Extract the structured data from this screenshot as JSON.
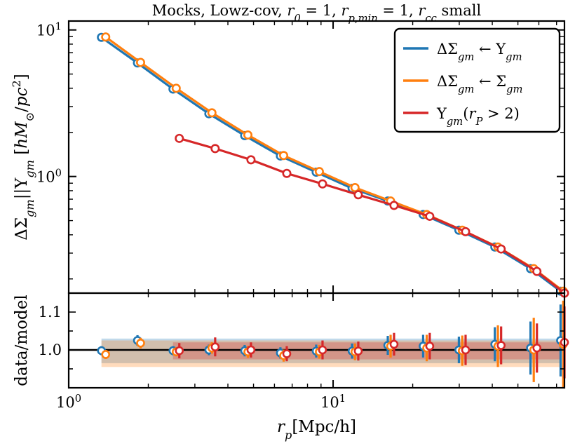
{
  "chart_data": [
    {
      "type": "line",
      "panel": "top",
      "title": "Mocks, Lowz-cov, r₀ = 1, rₚ,min = 1, rᶜᶜ small",
      "title_parts": [
        "Mocks, Lowz-cov, ",
        "r",
        "0",
        " = 1, ",
        "r",
        "p,min",
        " = 1, ",
        "r",
        "cc",
        " small"
      ],
      "xlabel": "rₚ[Mpc/h]",
      "xlabel_parts": [
        "r",
        "p",
        "[Mpc/h]"
      ],
      "ylabel": "ΔΣgm||Υgm [hM⊙/pc²]",
      "ylabel_parts": [
        "ΔΣ",
        "gm",
        "||Υ",
        "gm",
        " [",
        "hM",
        "⊙",
        "/",
        "pc",
        "2",
        "]"
      ],
      "xscale": "log",
      "yscale": "log",
      "xlim": [
        1,
        75
      ],
      "ylim": [
        0.16,
        11.5
      ],
      "yticks": [
        {
          "value": 1,
          "base": "10",
          "exp": "0"
        },
        {
          "value": 10,
          "base": "10",
          "exp": "1"
        }
      ],
      "legend_position": "top-right",
      "series": [
        {
          "name": "ΔΣgm ← Υgm",
          "label_parts": [
            "ΔΣ",
            "gm",
            " ← Υ",
            "gm"
          ],
          "color": "#1f77b4",
          "x": [
            1.33,
            1.82,
            2.48,
            3.39,
            4.63,
            6.32,
            8.63,
            11.8,
            16.1,
            21.9,
            29.9,
            40.9,
            55.8,
            72.5
          ],
          "y": [
            8.9,
            5.95,
            3.95,
            2.68,
            1.9,
            1.38,
            1.07,
            0.83,
            0.68,
            0.55,
            0.43,
            0.33,
            0.235,
            0.165
          ]
        },
        {
          "name": "ΔΣgm ← Σgm",
          "label_parts": [
            "ΔΣ",
            "gm",
            " ← Σ",
            "gm"
          ],
          "color": "#ff7f0e",
          "x": [
            1.38,
            1.87,
            2.55,
            3.48,
            4.76,
            6.5,
            8.87,
            12.1,
            16.5,
            22.6,
            30.8,
            42.0,
            57.4,
            74.2
          ],
          "y": [
            8.95,
            6.0,
            4.0,
            2.72,
            1.92,
            1.39,
            1.08,
            0.84,
            0.68,
            0.55,
            0.43,
            0.33,
            0.235,
            0.165
          ]
        },
        {
          "name": "Υgm(rP > 2)",
          "label_parts": [
            "Υ",
            "gm",
            "(",
            "r",
            "P",
            " > 2)"
          ],
          "color": "#d62728",
          "x": [
            2.62,
            3.58,
            4.89,
            6.68,
            9.12,
            12.45,
            17.0,
            23.2,
            31.7,
            43.2,
            59.0,
            75.0
          ],
          "y": [
            1.82,
            1.55,
            1.3,
            1.05,
            0.89,
            0.75,
            0.635,
            0.535,
            0.42,
            0.32,
            0.225,
            0.16
          ]
        }
      ]
    },
    {
      "type": "scatter",
      "panel": "bottom",
      "ylabel": "data/model",
      "xscale": "log",
      "xlim": [
        1,
        75
      ],
      "ylim": [
        0.9,
        1.15
      ],
      "yticks": [
        {
          "value": 1.0,
          "label": "1.0"
        },
        {
          "value": 1.1,
          "label": "1.1"
        }
      ],
      "xticks": [
        {
          "value": 1,
          "base": "10",
          "exp": "0"
        },
        {
          "value": 10,
          "base": "10",
          "exp": "1"
        }
      ],
      "reference_line": 1.0,
      "bands": [
        {
          "series": "ΔΣgm ← Υgm",
          "color": "#1f77b4",
          "x": [
            1.33,
            72.5
          ],
          "y": [
            0.965,
            1.03
          ]
        },
        {
          "series": "ΔΣgm ← Σgm",
          "color": "#ff7f0e",
          "x": [
            1.33,
            72.5
          ],
          "y": [
            0.955,
            1.025
          ]
        },
        {
          "series": "Υgm(rP > 2)",
          "color": "#d62728",
          "x": [
            2.48,
            72.5
          ],
          "y": [
            0.975,
            1.02
          ]
        }
      ],
      "series": [
        {
          "name": "ΔΣgm ← Υgm",
          "color": "#1f77b4",
          "x": [
            1.33,
            1.82,
            2.48,
            3.39,
            4.63,
            6.32,
            8.63,
            11.8,
            16.1,
            21.9,
            29.9,
            40.9,
            55.8,
            72.5
          ],
          "y": [
            0.998,
            1.025,
            0.998,
            1.0,
            0.998,
            0.992,
            0.997,
            0.997,
            1.012,
            1.01,
            1.0,
            1.015,
            1.005,
            1.025
          ],
          "err": [
            0.012,
            0.014,
            0.012,
            0.014,
            0.015,
            0.015,
            0.017,
            0.02,
            0.025,
            0.03,
            0.035,
            0.045,
            0.07,
            0.095
          ]
        },
        {
          "name": "ΔΣgm ← Σgm",
          "color": "#ff7f0e",
          "x": [
            1.38,
            1.87,
            2.55,
            3.48,
            4.76,
            6.5,
            8.87,
            12.1,
            16.5,
            22.6,
            30.8,
            42.0,
            57.4,
            74.2
          ],
          "y": [
            0.988,
            1.018,
            0.995,
            1.005,
            0.995,
            0.985,
            0.995,
            0.995,
            1.01,
            1.005,
            0.998,
            1.01,
            1.0,
            1.015
          ],
          "err": [
            0.012,
            0.014,
            0.012,
            0.015,
            0.016,
            0.016,
            0.018,
            0.022,
            0.03,
            0.035,
            0.04,
            0.055,
            0.085,
            0.115
          ]
        },
        {
          "name": "Υgm(rP > 2)",
          "color": "#d62728",
          "x": [
            2.62,
            3.58,
            4.89,
            6.68,
            9.12,
            12.45,
            17.0,
            23.2,
            31.7,
            43.2,
            59.0,
            75.0
          ],
          "y": [
            0.998,
            1.008,
            1.0,
            0.99,
            1.0,
            0.997,
            1.015,
            1.01,
            1.0,
            1.012,
            1.005,
            1.02
          ],
          "err": [
            0.02,
            0.025,
            0.02,
            0.02,
            0.025,
            0.025,
            0.03,
            0.035,
            0.04,
            0.05,
            0.065,
            0.095
          ]
        }
      ]
    }
  ]
}
